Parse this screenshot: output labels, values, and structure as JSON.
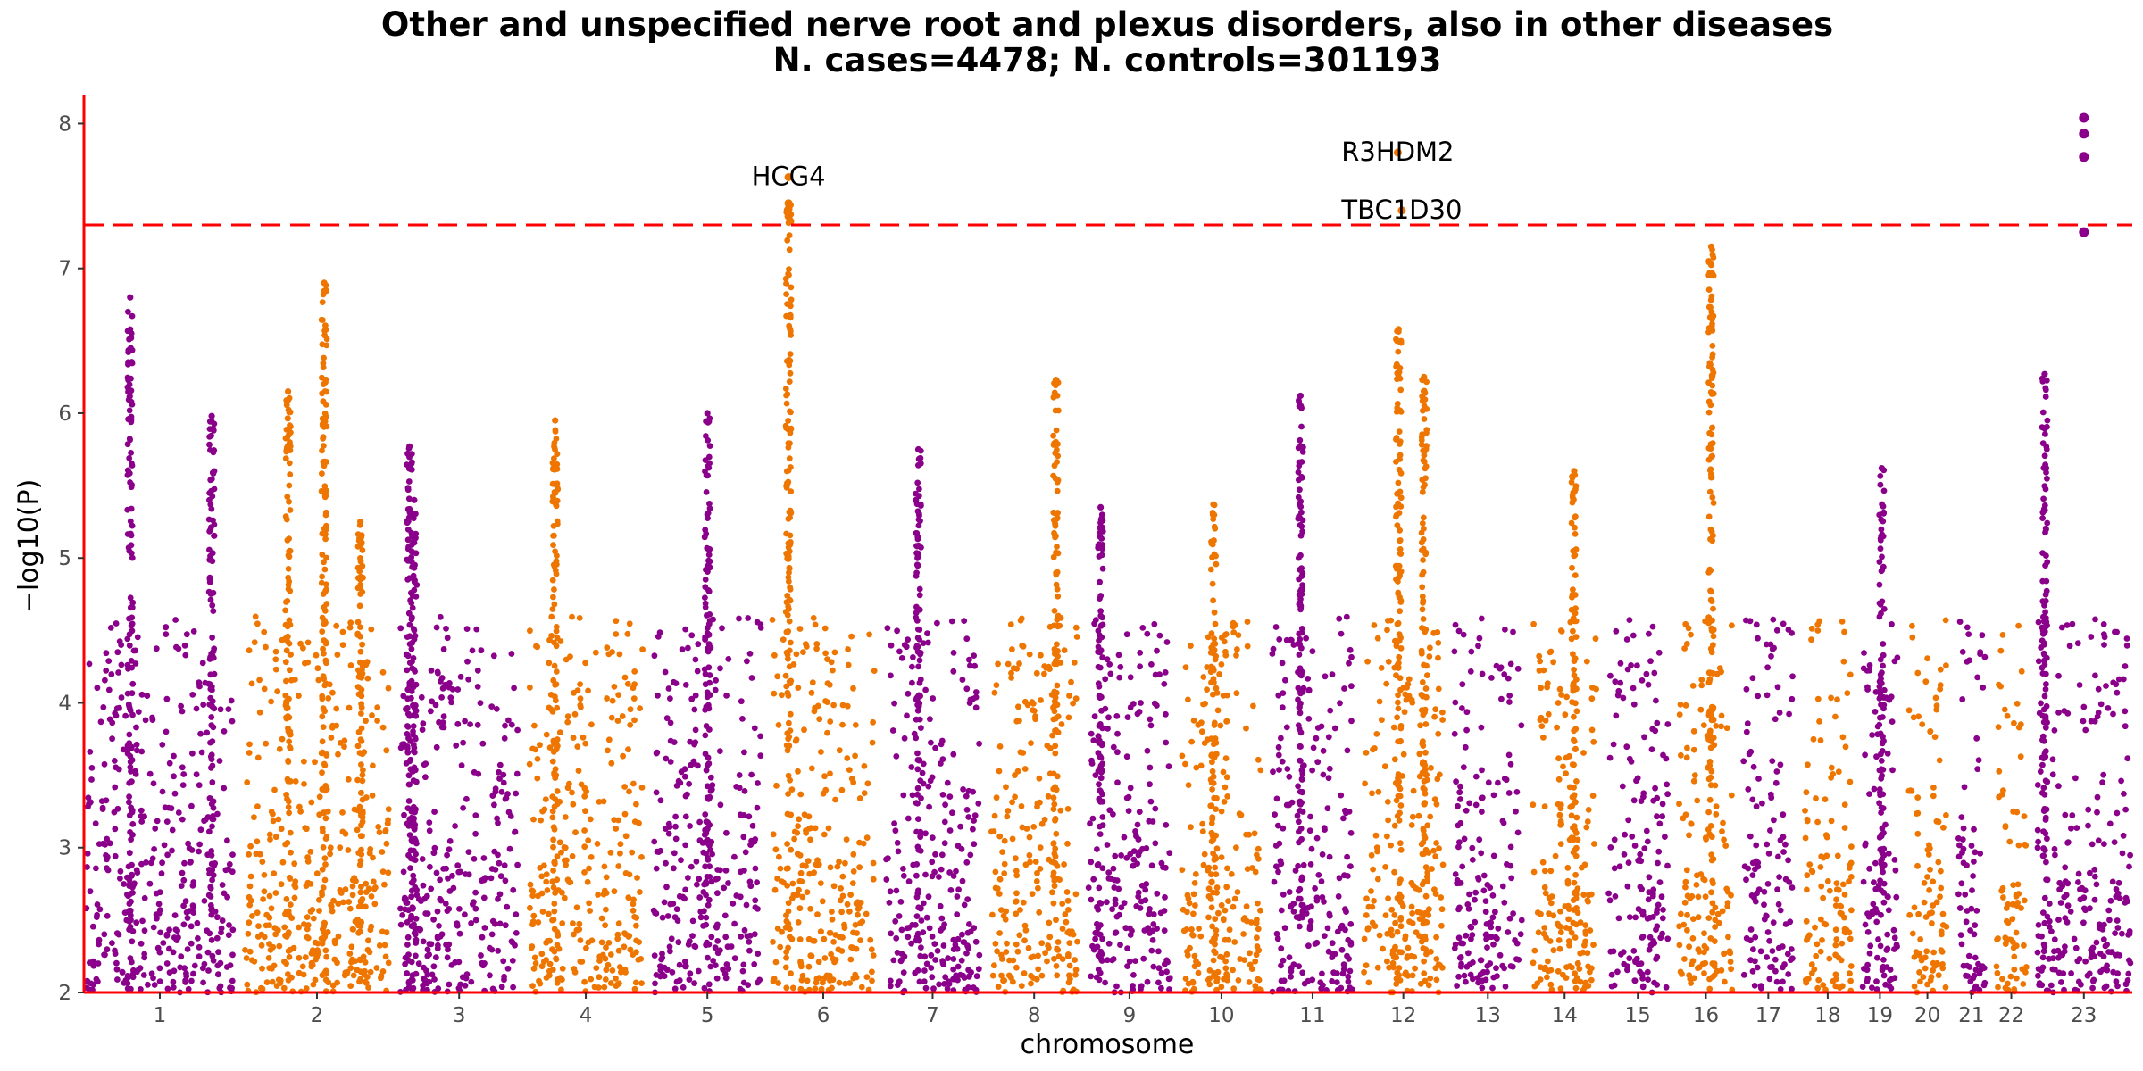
{
  "chart_data": {
    "type": "scatter",
    "title": "Other and unspecified nerve root and plexus disorders, also in other diseases",
    "subtitle": "N. cases=4478; N. controls=301193",
    "xlabel": "chromosome",
    "ylabel": "−log10(P)",
    "ylim": [
      2,
      8.2
    ],
    "yticks": [
      2,
      3,
      4,
      5,
      6,
      7,
      8
    ],
    "threshold": 7.3,
    "colors": {
      "odd": "#8B008B",
      "even": "#EE7600",
      "threshold_line": "#FF0000",
      "axis": "#FF0000"
    },
    "chromosomes": [
      {
        "label": "1",
        "size": 248
      },
      {
        "label": "2",
        "size": 242
      },
      {
        "label": "3",
        "size": 198
      },
      {
        "label": "4",
        "size": 190
      },
      {
        "label": "5",
        "size": 181
      },
      {
        "label": "6",
        "size": 171
      },
      {
        "label": "7",
        "size": 159
      },
      {
        "label": "8",
        "size": 145
      },
      {
        "label": "9",
        "size": 138
      },
      {
        "label": "10",
        "size": 134
      },
      {
        "label": "11",
        "size": 135
      },
      {
        "label": "12",
        "size": 133
      },
      {
        "label": "13",
        "size": 114
      },
      {
        "label": "14",
        "size": 107
      },
      {
        "label": "15",
        "size": 102
      },
      {
        "label": "16",
        "size": 90
      },
      {
        "label": "17",
        "size": 83
      },
      {
        "label": "18",
        "size": 80
      },
      {
        "label": "19",
        "size": 59
      },
      {
        "label": "20",
        "size": 64
      },
      {
        "label": "21",
        "size": 47
      },
      {
        "label": "22",
        "size": 51
      },
      {
        "label": "23",
        "size": 156
      }
    ],
    "peaks": [
      {
        "chr": "1",
        "pos": 0.3,
        "top": 6.8
      },
      {
        "chr": "1",
        "pos": 0.85,
        "top": 5.98
      },
      {
        "chr": "2",
        "pos": 0.3,
        "top": 6.15
      },
      {
        "chr": "2",
        "pos": 0.55,
        "top": 6.9
      },
      {
        "chr": "2",
        "pos": 0.8,
        "top": 5.25
      },
      {
        "chr": "3",
        "pos": 0.08,
        "top": 5.77
      },
      {
        "chr": "3",
        "pos": 0.12,
        "top": 5.4
      },
      {
        "chr": "4",
        "pos": 0.23,
        "top": 5.95
      },
      {
        "chr": "5",
        "pos": 0.5,
        "top": 6.0
      },
      {
        "chr": "6",
        "pos": 0.16,
        "top": 7.45
      },
      {
        "chr": "7",
        "pos": 0.35,
        "top": 5.75
      },
      {
        "chr": "8",
        "pos": 0.75,
        "top": 6.23
      },
      {
        "chr": "9",
        "pos": 0.15,
        "top": 5.35
      },
      {
        "chr": "10",
        "pos": 0.4,
        "top": 5.37
      },
      {
        "chr": "11",
        "pos": 0.35,
        "top": 6.12
      },
      {
        "chr": "12",
        "pos": 0.44,
        "top": 6.58
      },
      {
        "chr": "12",
        "pos": 0.76,
        "top": 6.25
      },
      {
        "chr": "14",
        "pos": 0.65,
        "top": 5.6
      },
      {
        "chr": "16",
        "pos": 0.6,
        "top": 7.15
      },
      {
        "chr": "19",
        "pos": 0.55,
        "top": 5.62
      },
      {
        "chr": "23",
        "pos": 0.08,
        "top": 6.27
      }
    ],
    "highlights": [
      {
        "chr": "6",
        "pos": 0.16,
        "y": 7.63
      },
      {
        "chr": "6",
        "pos": 0.16,
        "y": 7.45
      },
      {
        "chr": "6",
        "pos": 0.16,
        "y": 7.41
      },
      {
        "chr": "6",
        "pos": 0.16,
        "y": 7.36
      },
      {
        "chr": "12",
        "pos": 0.43,
        "y": 7.8
      },
      {
        "chr": "12",
        "pos": 0.48,
        "y": 7.4
      },
      {
        "chr": "23",
        "pos": 0.5,
        "y": 8.04
      },
      {
        "chr": "23",
        "pos": 0.5,
        "y": 7.93
      },
      {
        "chr": "23",
        "pos": 0.5,
        "y": 7.77
      },
      {
        "chr": "23",
        "pos": 0.5,
        "y": 7.25
      }
    ],
    "annotations": [
      {
        "text": "HCG4",
        "chr": "6",
        "pos": 0.16,
        "y": 7.63
      },
      {
        "text": "R3HDM2",
        "chr": "12",
        "pos": 0.43,
        "y": 7.8
      },
      {
        "text": "TBC1D30",
        "chr": "12",
        "pos": 0.48,
        "y": 7.4
      }
    ]
  }
}
